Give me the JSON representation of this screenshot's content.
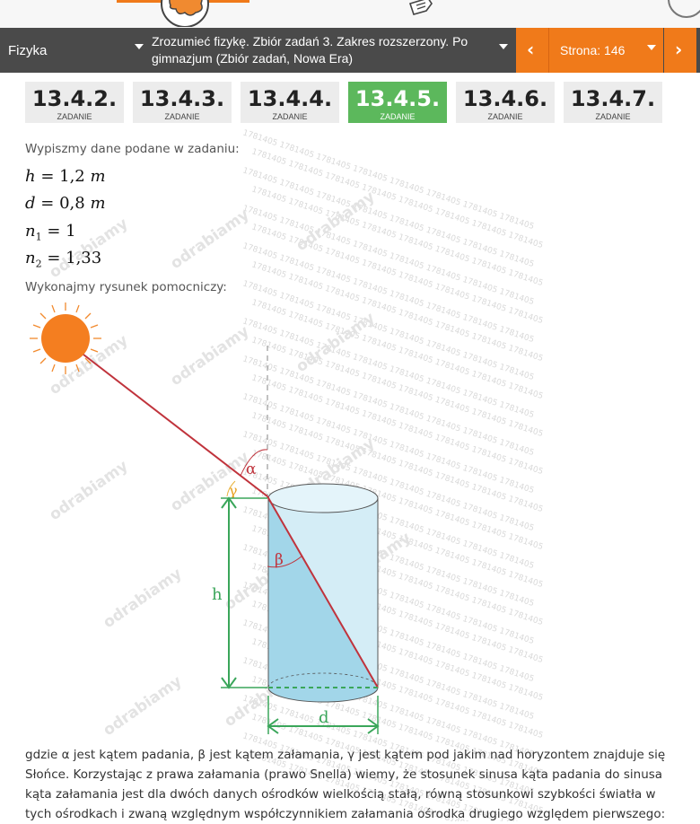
{
  "nav": {
    "subject": "Fizyka",
    "book": "Zrozumieć fizykę. Zbiór zadań 3. Zakres rozszerzony. Po gimnazjum (Zbiór zadań, Nowa Era)",
    "page": "Strona: 146",
    "prev_icon": "chevron-left-icon",
    "next_icon": "chevron-right-icon"
  },
  "tasks": [
    {
      "number": "13.4.2.",
      "label": "ZADANIE"
    },
    {
      "number": "13.4.3.",
      "label": "ZADANIE"
    },
    {
      "number": "13.4.4.",
      "label": "ZADANIE"
    },
    {
      "number": "13.4.5.",
      "label": "ZADANIE",
      "active": true
    },
    {
      "number": "13.4.6.",
      "label": "ZADANIE"
    },
    {
      "number": "13.4.7.",
      "label": "ZADANIE"
    }
  ],
  "content": {
    "intro": "Wypiszmy dane podane w zadaniu:",
    "given": [
      {
        "var": "h",
        "sub": "",
        "value": "1,2",
        "unit": "m"
      },
      {
        "var": "d",
        "sub": "",
        "value": "0,8",
        "unit": "m"
      },
      {
        "var": "n",
        "sub": "1",
        "value": "1",
        "unit": ""
      },
      {
        "var": "n",
        "sub": "2",
        "value": "1,33",
        "unit": ""
      }
    ],
    "figure_intro": "Wykonajmy rysunek pomocniczy:",
    "figure_labels": {
      "alpha": "α",
      "beta": "β",
      "gamma": "γ",
      "h": "h",
      "d": "d"
    },
    "paragraph": "gdzie α jest kątem padania, β jest kątem załamania, γ jest kątem pod jakim nad horyzontem znajduje się Słońce. Korzystając z prawa załamania (prawo Snella) wiemy, że stosunek sinusa kąta padania do sinusa kąta załamania jest dla dwóch danych ośrodków wielkością stałą, równą stosunkowi szybkości światła w tych ośrodkach i zwaną względnym współczynnikiem załamania ośrodka drugiego względem pierwszego:"
  },
  "watermark": {
    "brand": "Odrabiamy",
    "code": "1781405"
  },
  "colors": {
    "accent": "#f07a1a",
    "nav_bg": "#4a4a4a",
    "active_tab": "#5cb85c",
    "ray": "#c0333c",
    "measure": "#3aa65a",
    "water": "#a8d8ea"
  }
}
